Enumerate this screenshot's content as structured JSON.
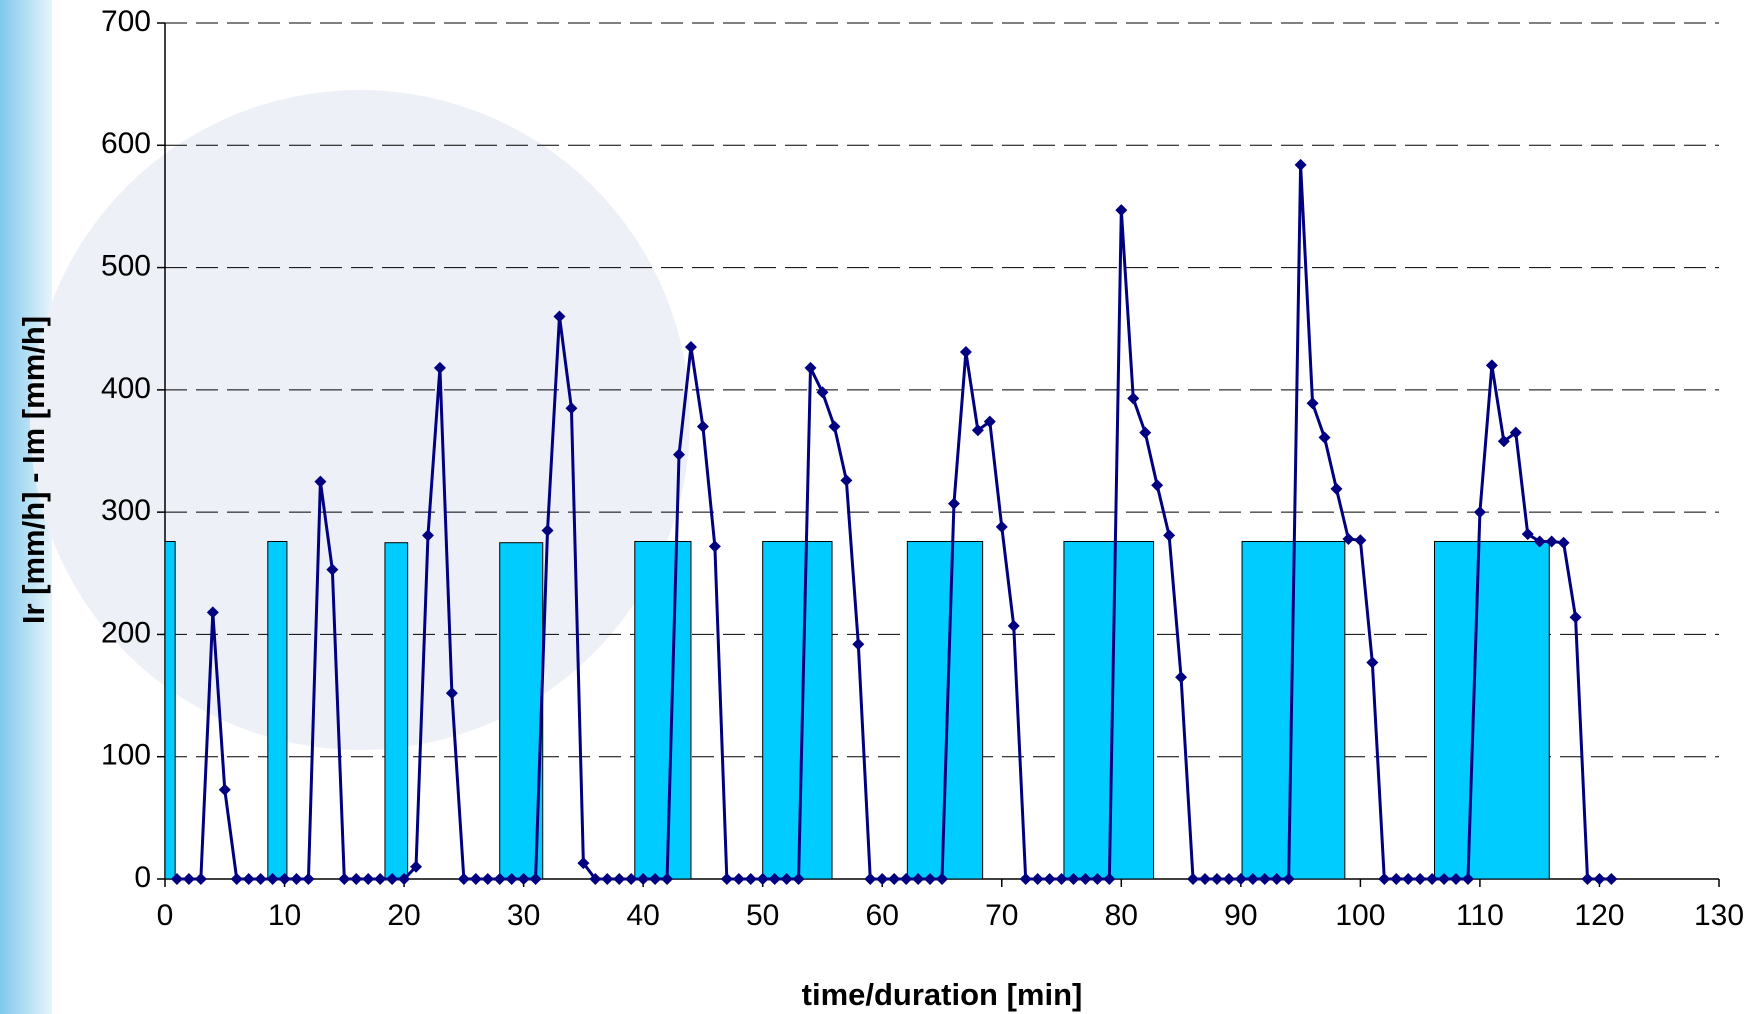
{
  "chart_data": {
    "type": "combo",
    "x_label": "time/duration [min]",
    "y_label": "Ir [mm/h] - Im [mm/h]",
    "xlim": [
      0,
      130
    ],
    "xticks": [
      0,
      10,
      20,
      30,
      40,
      50,
      60,
      70,
      80,
      90,
      100,
      110,
      120,
      130
    ],
    "ylim": [
      0,
      700
    ],
    "yticks": [
      0,
      100,
      200,
      300,
      400,
      500,
      600,
      700
    ],
    "grid": true,
    "intervals": {
      "color": "#00ccff",
      "start": [
        0,
        8.6,
        18.4,
        28,
        39.3,
        50,
        62.1,
        75.2,
        90.1,
        106.2
      ],
      "end": [
        0.85,
        10.2,
        20.3,
        31.6,
        44,
        55.8,
        68.4,
        82.7,
        98.7,
        115.8
      ],
      "values": [
        276,
        276,
        275,
        275,
        276,
        276,
        276,
        276,
        276,
        276
      ]
    },
    "line": {
      "color": "#000080",
      "x": [
        1,
        2,
        3,
        4,
        5,
        6,
        7,
        8,
        9,
        10,
        11,
        12,
        13,
        14,
        15,
        16,
        17,
        18,
        19,
        20,
        21,
        22,
        23,
        24,
        25,
        26,
        27,
        28,
        29,
        30,
        31,
        32,
        33,
        34,
        35,
        36,
        37,
        38,
        39,
        40,
        41,
        42,
        43,
        44,
        45,
        46,
        47,
        48,
        49,
        50,
        51,
        52,
        53,
        54,
        55,
        56,
        57,
        58,
        59,
        60,
        61,
        62,
        63,
        64,
        65,
        66,
        67,
        68,
        69,
        70,
        71,
        72,
        73,
        74,
        75,
        76,
        77,
        78,
        79,
        80,
        81,
        82,
        83,
        84,
        85,
        86,
        87,
        88,
        89,
        90,
        91,
        92,
        93,
        94,
        95,
        96,
        97,
        98,
        99,
        100,
        101,
        102,
        103,
        104,
        105,
        106,
        107,
        108,
        109,
        110,
        111,
        112,
        113,
        114,
        115,
        116,
        117,
        118,
        119,
        120,
        121
      ],
      "values": [
        0,
        0,
        0,
        218,
        73,
        0,
        0,
        0,
        0,
        0,
        0,
        0,
        325,
        253,
        0,
        0,
        0,
        0,
        0,
        0,
        10,
        281,
        418,
        152,
        0,
        0,
        0,
        0,
        0,
        0,
        0,
        285,
        460,
        385,
        13,
        0,
        0,
        0,
        0,
        0,
        0,
        0,
        347,
        435,
        370,
        272,
        0,
        0,
        0,
        0,
        0,
        0,
        0,
        418,
        398,
        370,
        326,
        192,
        0,
        0,
        0,
        0,
        0,
        0,
        0,
        307,
        431,
        367,
        374,
        288,
        207,
        0,
        0,
        0,
        0,
        0,
        0,
        0,
        0,
        547,
        393,
        365,
        322,
        281,
        165,
        0,
        0,
        0,
        0,
        0,
        0,
        0,
        0,
        0,
        584,
        389,
        361,
        319,
        278,
        277,
        177,
        0,
        0,
        0,
        0,
        0,
        0,
        0,
        0,
        300,
        420,
        358,
        365,
        282,
        276,
        276,
        275,
        214,
        0,
        0,
        0
      ]
    }
  }
}
